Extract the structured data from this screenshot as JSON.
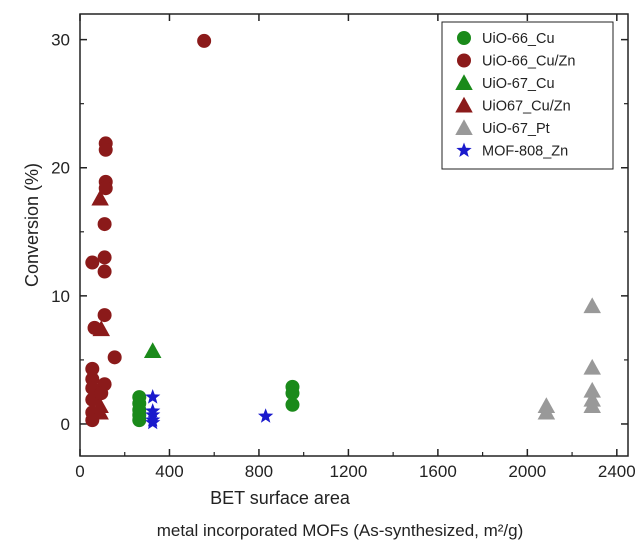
{
  "chart_data": {
    "type": "scatter",
    "xlabel": "BET surface area",
    "subtitle": "metal incorporated MOFs (As-synthesized, m²/g)",
    "ylabel": "Conversion (%)",
    "xlim": [
      0,
      2450
    ],
    "ylim": [
      -2.5,
      32
    ],
    "xticks": [
      0,
      400,
      800,
      1200,
      1600,
      2000,
      2400
    ],
    "xtick_labels": [
      "0",
      "400",
      "800",
      "1200",
      "1600",
      "2000",
      "2400"
    ],
    "yticks": [
      0,
      10,
      20,
      30
    ],
    "ytick_labels": [
      "0",
      "10",
      "20",
      "30"
    ],
    "grid": false,
    "legend_position": "top-right",
    "series": [
      {
        "name": "UiO-66_Cu",
        "marker": "circle",
        "color": "#1a8a1a",
        "points": [
          [
            265,
            2.1
          ],
          [
            265,
            1.6
          ],
          [
            265,
            1.1
          ],
          [
            265,
            0.7
          ],
          [
            265,
            0.3
          ],
          [
            950,
            2.9
          ],
          [
            950,
            2.4
          ],
          [
            950,
            1.5
          ]
        ]
      },
      {
        "name": "UiO-66_Cu/Zn",
        "marker": "circle",
        "color": "#8b1a1a",
        "points": [
          [
            555,
            29.9
          ],
          [
            115,
            21.9
          ],
          [
            115,
            21.4
          ],
          [
            115,
            18.9
          ],
          [
            115,
            18.4
          ],
          [
            110,
            15.6
          ],
          [
            110,
            13.0
          ],
          [
            110,
            11.9
          ],
          [
            55,
            12.6
          ],
          [
            110,
            8.5
          ],
          [
            65,
            7.5
          ],
          [
            55,
            4.3
          ],
          [
            55,
            3.5
          ],
          [
            55,
            2.8
          ],
          [
            55,
            1.9
          ],
          [
            55,
            0.9
          ],
          [
            55,
            0.3
          ],
          [
            110,
            3.1
          ],
          [
            155,
            5.2
          ],
          [
            95,
            2.4
          ]
        ]
      },
      {
        "name": "UiO-67_Cu",
        "marker": "triangle",
        "color": "#1a8a1a",
        "points": [
          [
            325,
            5.7
          ]
        ]
      },
      {
        "name": "UiO67_Cu/Zn",
        "marker": "triangle",
        "color": "#8b1a1a",
        "points": [
          [
            90,
            17.6
          ],
          [
            95,
            7.4
          ],
          [
            90,
            1.4
          ],
          [
            90,
            0.9
          ]
        ]
      },
      {
        "name": "UiO-67_Pt",
        "marker": "triangle",
        "color": "#999999",
        "points": [
          [
            2290,
            9.2
          ],
          [
            2290,
            4.4
          ],
          [
            2290,
            2.6
          ],
          [
            2290,
            1.9
          ],
          [
            2290,
            1.4
          ],
          [
            2085,
            1.4
          ],
          [
            2085,
            0.9
          ]
        ]
      },
      {
        "name": "MOF-808_Zn",
        "marker": "star",
        "color": "#1a1acc",
        "points": [
          [
            325,
            2.1
          ],
          [
            325,
            1.0
          ],
          [
            325,
            0.7
          ],
          [
            325,
            0.3
          ],
          [
            325,
            0.1
          ],
          [
            830,
            0.6
          ]
        ]
      }
    ]
  }
}
